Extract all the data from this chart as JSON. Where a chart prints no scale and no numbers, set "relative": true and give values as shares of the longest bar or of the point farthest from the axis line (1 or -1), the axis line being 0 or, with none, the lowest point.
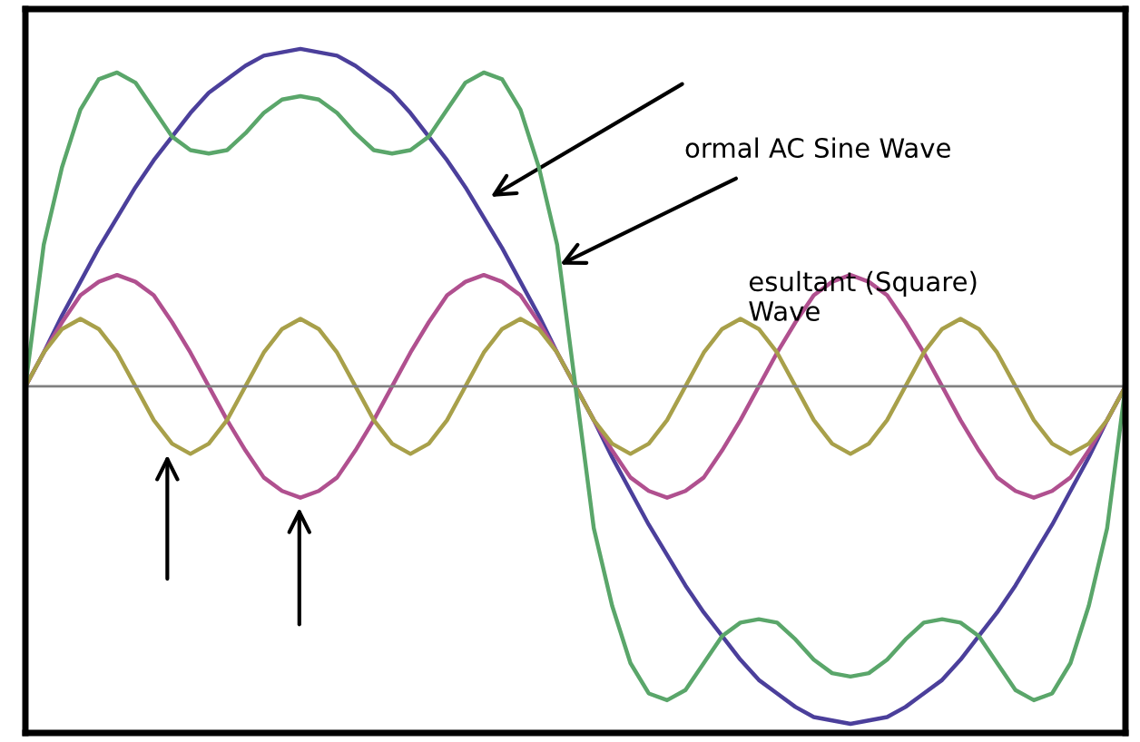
{
  "chart_data": {
    "type": "line",
    "relative": true,
    "legend": false,
    "marker": "none",
    "line_style": "solid",
    "categories": [
      null,
      null,
      null,
      null,
      null,
      null,
      null,
      null,
      null,
      null,
      null,
      null,
      null,
      null,
      null,
      null,
      null,
      null,
      null,
      null,
      null,
      null,
      null,
      null,
      null,
      null,
      null,
      null,
      null,
      null,
      null,
      null,
      null,
      null,
      null,
      null,
      null,
      null,
      null,
      null,
      null,
      null,
      null,
      null,
      null,
      null,
      null,
      null,
      null,
      null,
      null,
      null,
      null,
      null,
      null,
      null,
      null,
      null,
      null,
      null,
      null
    ],
    "series": [
      {
        "color": "#4b3f9b",
        "values": [
          0,
          0.1,
          0.21,
          0.31,
          0.41,
          0.5,
          0.59,
          0.67,
          0.74,
          0.81,
          0.87,
          0.91,
          0.95,
          0.98,
          0.99,
          1.0,
          0.99,
          0.98,
          0.95,
          0.91,
          0.87,
          0.81,
          0.74,
          0.67,
          0.59,
          0.5,
          0.41,
          0.31,
          0.21,
          0.1,
          0,
          -0.1,
          -0.21,
          -0.31,
          -0.41,
          -0.5,
          -0.59,
          -0.67,
          -0.74,
          -0.81,
          -0.87,
          -0.91,
          -0.95,
          -0.98,
          -0.99,
          -1.0,
          -0.99,
          -0.98,
          -0.95,
          -0.91,
          -0.87,
          -0.81,
          -0.74,
          -0.67,
          -0.59,
          -0.5,
          -0.41,
          -0.31,
          -0.21,
          -0.1,
          0
        ]
      },
      {
        "color": "#b0508f",
        "values": [
          0,
          0.1,
          0.19,
          0.27,
          0.31,
          0.33,
          0.31,
          0.27,
          0.19,
          0.1,
          0,
          -0.1,
          -0.19,
          -0.27,
          -0.31,
          -0.33,
          -0.31,
          -0.27,
          -0.19,
          -0.1,
          0,
          0.1,
          0.19,
          0.27,
          0.31,
          0.33,
          0.31,
          0.27,
          0.19,
          0.1,
          0,
          -0.1,
          -0.19,
          -0.27,
          -0.31,
          -0.33,
          -0.31,
          -0.27,
          -0.19,
          -0.1,
          0,
          0.1,
          0.19,
          0.27,
          0.31,
          0.33,
          0.31,
          0.27,
          0.19,
          0.1,
          0,
          -0.1,
          -0.19,
          -0.27,
          -0.31,
          -0.33,
          -0.31,
          -0.27,
          -0.19,
          -0.1,
          0
        ]
      },
      {
        "color": "#a8a04a",
        "values": [
          0,
          0.1,
          0.17,
          0.2,
          0.17,
          0.1,
          0,
          -0.1,
          -0.17,
          -0.2,
          -0.17,
          -0.1,
          0,
          0.1,
          0.17,
          0.2,
          0.17,
          0.1,
          0,
          -0.1,
          -0.17,
          -0.2,
          -0.17,
          -0.1,
          0,
          0.1,
          0.17,
          0.2,
          0.17,
          0.1,
          0,
          -0.1,
          -0.17,
          -0.2,
          -0.17,
          -0.1,
          0,
          0.1,
          0.17,
          0.2,
          0.17,
          0.1,
          0,
          -0.1,
          -0.17,
          -0.2,
          -0.17,
          -0.1,
          0,
          0.1,
          0.17,
          0.2,
          0.17,
          0.1,
          0,
          -0.1,
          -0.17,
          -0.2,
          -0.17,
          -0.1,
          0
        ]
      },
      {
        "color": "#5aa66a",
        "values": [
          0,
          0.42,
          0.65,
          0.82,
          0.91,
          0.93,
          0.9,
          0.82,
          0.74,
          0.7,
          0.69,
          0.7,
          0.75,
          0.81,
          0.85,
          0.86,
          0.85,
          0.81,
          0.75,
          0.7,
          0.69,
          0.7,
          0.74,
          0.82,
          0.9,
          0.93,
          0.91,
          0.82,
          0.65,
          0.42,
          0,
          -0.42,
          -0.65,
          -0.82,
          -0.91,
          -0.93,
          -0.9,
          -0.82,
          -0.74,
          -0.7,
          -0.69,
          -0.7,
          -0.75,
          -0.81,
          -0.85,
          -0.86,
          -0.85,
          -0.81,
          -0.75,
          -0.7,
          -0.69,
          -0.7,
          -0.74,
          -0.82,
          -0.9,
          -0.93,
          -0.91,
          -0.82,
          -0.65,
          -0.42,
          0
        ]
      }
    ],
    "annotations": [
      "ormal AC Sine Wave",
      "esultant (Square)\nWave"
    ]
  }
}
